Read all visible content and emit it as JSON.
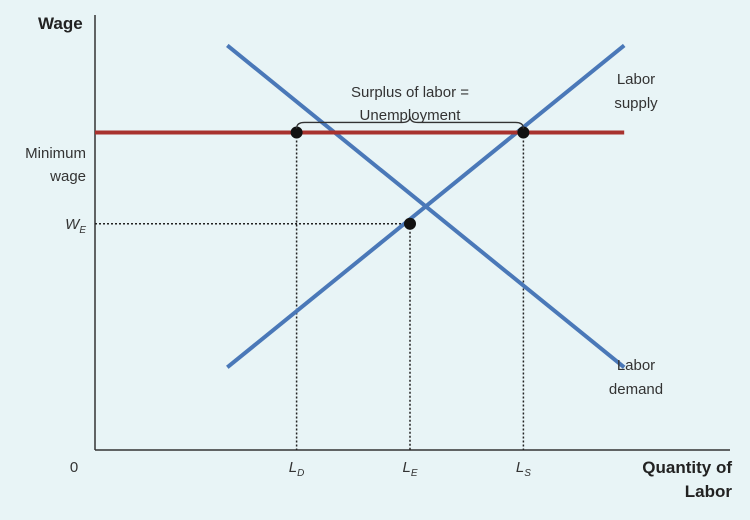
{
  "chart_data": {
    "type": "line",
    "ylabel": "Wage",
    "xlabel_line1": "Quantity of",
    "xlabel_line2": "Labor",
    "origin_label": "0",
    "ylim": [
      0,
      10
    ],
    "xlim": [
      0,
      10
    ],
    "y_ticks": [
      {
        "id": "minimum-wage",
        "label_line1": "Minimum",
        "label_line2": "wage",
        "value": 7.3
      },
      {
        "id": "equilibrium-wage",
        "label_main": "W",
        "label_sub": "E",
        "value": 5.2
      }
    ],
    "x_ticks": [
      {
        "id": "l-d",
        "label_main": "L",
        "label_sub": "D",
        "value": 3.2
      },
      {
        "id": "l-e",
        "label_main": "L",
        "label_sub": "E",
        "value": 5.0
      },
      {
        "id": "l-s",
        "label_main": "L",
        "label_sub": "S",
        "value": 6.8
      }
    ],
    "series": [
      {
        "id": "labor-supply",
        "label_line1": "Labor",
        "label_line2": "supply",
        "color": "#4a78b8",
        "points": [
          [
            2.1,
            1.9
          ],
          [
            8.4,
            9.3
          ]
        ]
      },
      {
        "id": "labor-demand",
        "label_line1": "Labor",
        "label_line2": "demand",
        "color": "#4a78b8",
        "points": [
          [
            2.1,
            9.3
          ],
          [
            8.4,
            1.9
          ]
        ]
      },
      {
        "id": "minimum-wage-line",
        "color": "#a8322e",
        "points": [
          [
            0,
            7.3
          ],
          [
            8.4,
            7.3
          ]
        ]
      }
    ],
    "points": [
      {
        "id": "quantity-demanded-point",
        "x": 3.2,
        "y": 7.3
      },
      {
        "id": "quantity-supplied-point",
        "x": 6.8,
        "y": 7.3
      },
      {
        "id": "equilibrium-point",
        "x": 5.0,
        "y": 5.2
      }
    ],
    "annotation": {
      "line1": "Surplus of labor =",
      "line2": "Unemployment",
      "from_x": 3.2,
      "to_x": 6.8
    }
  }
}
